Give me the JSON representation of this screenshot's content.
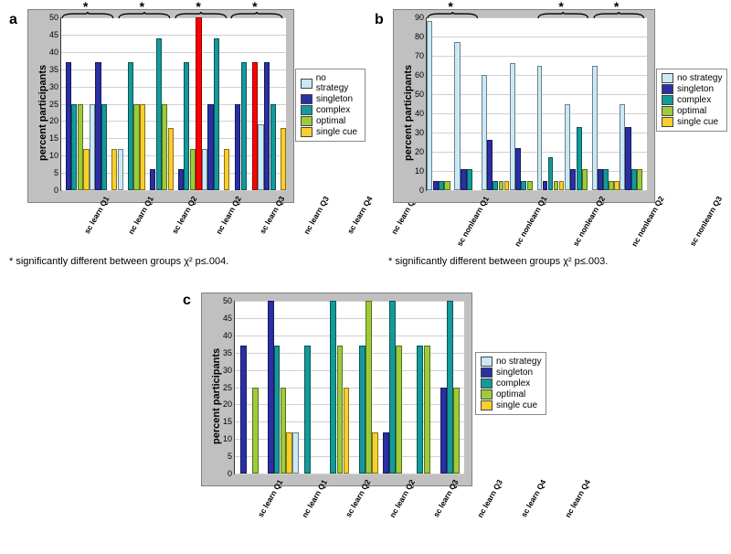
{
  "categories": [
    "no strategy",
    "singleton",
    "complex",
    "optimal",
    "single cue"
  ],
  "category_colors": [
    "#c9e9f6",
    "#2a2fa4",
    "#149a9a",
    "#9ecb3a",
    "#f7cf2e"
  ],
  "plot_bg": "#ffffff",
  "grid_color": "#d0d0d0",
  "outer_bg": "#c0c0c0",
  "ylabel": "percent participants",
  "panel_a": {
    "label": "a",
    "ylim": [
      0,
      50
    ],
    "ytick_step": 5,
    "cap_at_max_color": "#ff0000",
    "groups": [
      {
        "name": "sc learn Q1",
        "values": [
          0,
          37,
          25,
          25,
          12
        ]
      },
      {
        "name": "nc learn Q1",
        "values": [
          25,
          37,
          25,
          0,
          12
        ]
      },
      {
        "name": "sc learn Q2",
        "values": [
          12,
          0,
          37,
          25,
          25
        ]
      },
      {
        "name": "nc learn Q2",
        "values": [
          0,
          6,
          44,
          25,
          18
        ]
      },
      {
        "name": "sc learn Q3",
        "values": [
          0,
          6,
          37,
          12,
          50
        ]
      },
      {
        "name": "nc learn Q3",
        "values": [
          12,
          25,
          44,
          0,
          12
        ]
      },
      {
        "name": "sc learn Q4",
        "values": [
          0,
          25,
          37,
          0,
          37
        ]
      },
      {
        "name": "nc learn Q4",
        "values": [
          19,
          37,
          25,
          0,
          18
        ]
      }
    ],
    "sig_pairs": [
      [
        0,
        1
      ],
      [
        2,
        3
      ],
      [
        4,
        5
      ],
      [
        6,
        7
      ]
    ],
    "footnote": "* significantly different between groups χ² p≤.004."
  },
  "panel_b": {
    "label": "b",
    "ylim": [
      0,
      90
    ],
    "ytick_step": 10,
    "groups": [
      {
        "name": "sc nonlearn Q1",
        "values": [
          88,
          5,
          5,
          5,
          0
        ]
      },
      {
        "name": "nc nonlearn Q1",
        "values": [
          77,
          11,
          11,
          0,
          0
        ]
      },
      {
        "name": "sc nonlearn Q2",
        "values": [
          60,
          26,
          5,
          5,
          5
        ]
      },
      {
        "name": "nc nonlearn Q2",
        "values": [
          66,
          22,
          5,
          5,
          0
        ]
      },
      {
        "name": "sc nonlearn Q3",
        "values": [
          65,
          5,
          17,
          5,
          5
        ]
      },
      {
        "name": "nc nonlearn Q3",
        "values": [
          45,
          11,
          33,
          11,
          0
        ]
      },
      {
        "name": "sc nonlearn Q4",
        "values": [
          65,
          11,
          11,
          5,
          5
        ]
      },
      {
        "name": "nc nonlearn Q4",
        "values": [
          45,
          33,
          11,
          11,
          0
        ]
      }
    ],
    "sig_pairs": [
      [
        0,
        1
      ],
      [
        4,
        5
      ],
      [
        6,
        7
      ]
    ],
    "footnote": "* significantly different between groups χ² p≤.003."
  },
  "panel_c": {
    "label": "c",
    "ylim": [
      0,
      50
    ],
    "ytick_step": 5,
    "groups": [
      {
        "name": "sc learn Q1",
        "values": [
          0,
          37,
          0,
          25,
          0
        ]
      },
      {
        "name": "nc learn Q1",
        "values": [
          0,
          50,
          37,
          25,
          12
        ]
      },
      {
        "name": "sc learn Q2",
        "values": [
          12,
          0,
          37,
          0,
          0
        ]
      },
      {
        "name": "nc learn Q2",
        "values": [
          0,
          0,
          50,
          37,
          25
        ]
      },
      {
        "name": "sc learn Q3",
        "values": [
          0,
          0,
          37,
          50,
          12
        ]
      },
      {
        "name": "nc learn Q3",
        "values": [
          0,
          12,
          50,
          37,
          0
        ]
      },
      {
        "name": "sc learn Q4",
        "values": [
          0,
          0,
          37,
          37,
          0
        ]
      },
      {
        "name": "nc learn Q4",
        "values": [
          0,
          25,
          50,
          25,
          0
        ]
      }
    ],
    "sig_pairs": [],
    "footnote": ""
  },
  "legend_labels": {
    "no_strategy": "no strategy",
    "singleton": "singleton",
    "complex": "complex",
    "optimal": "optimal",
    "single_cue": "single cue"
  }
}
